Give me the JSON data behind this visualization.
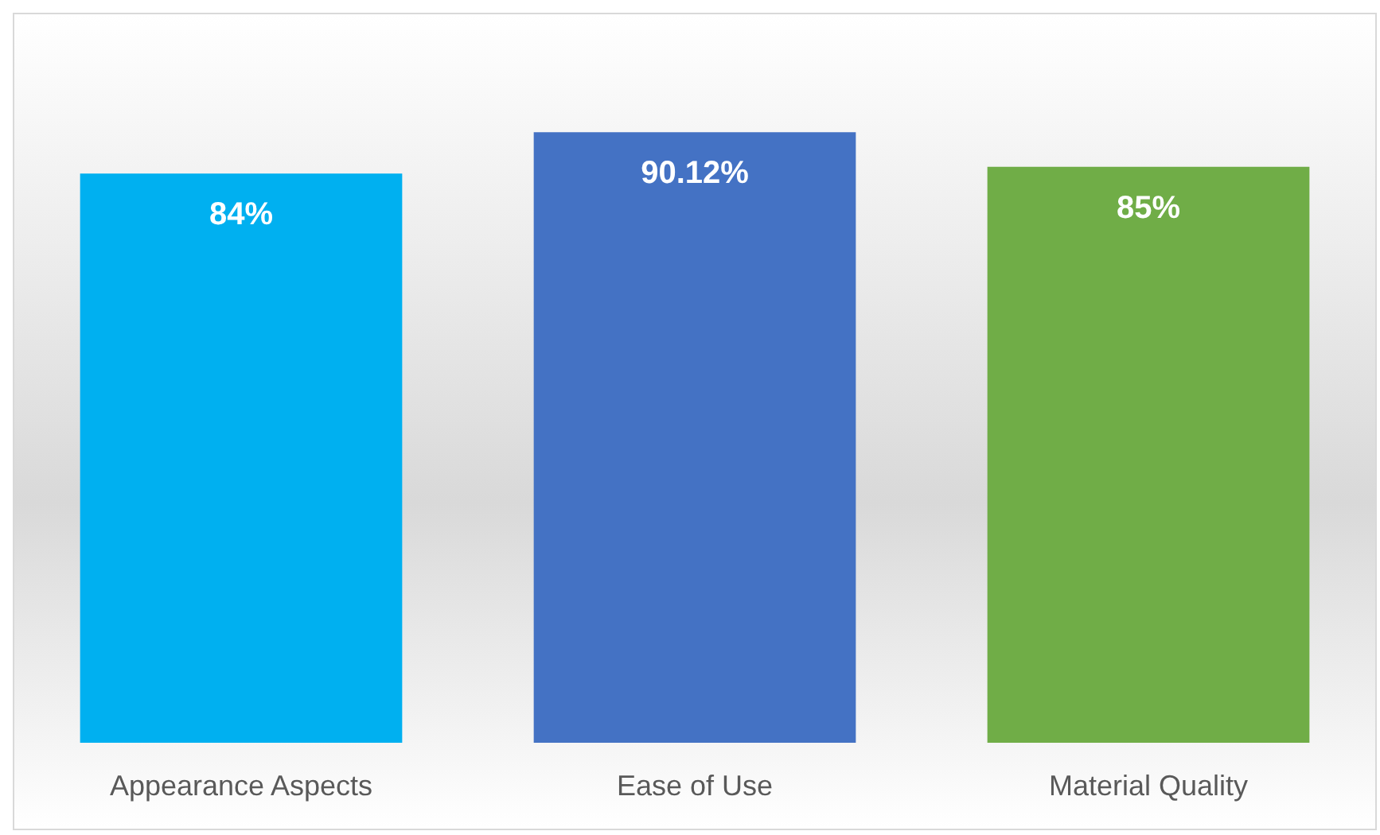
{
  "chart_data": {
    "type": "bar",
    "categories": [
      "Appearance Aspects",
      "Ease of Use",
      "Material Quality"
    ],
    "values": [
      84,
      90.12,
      85
    ],
    "colors": [
      "#00b0f0",
      "#4472c4",
      "#70ad47"
    ],
    "value_labels": [
      "84%",
      "90.12%",
      "85%"
    ]
  }
}
